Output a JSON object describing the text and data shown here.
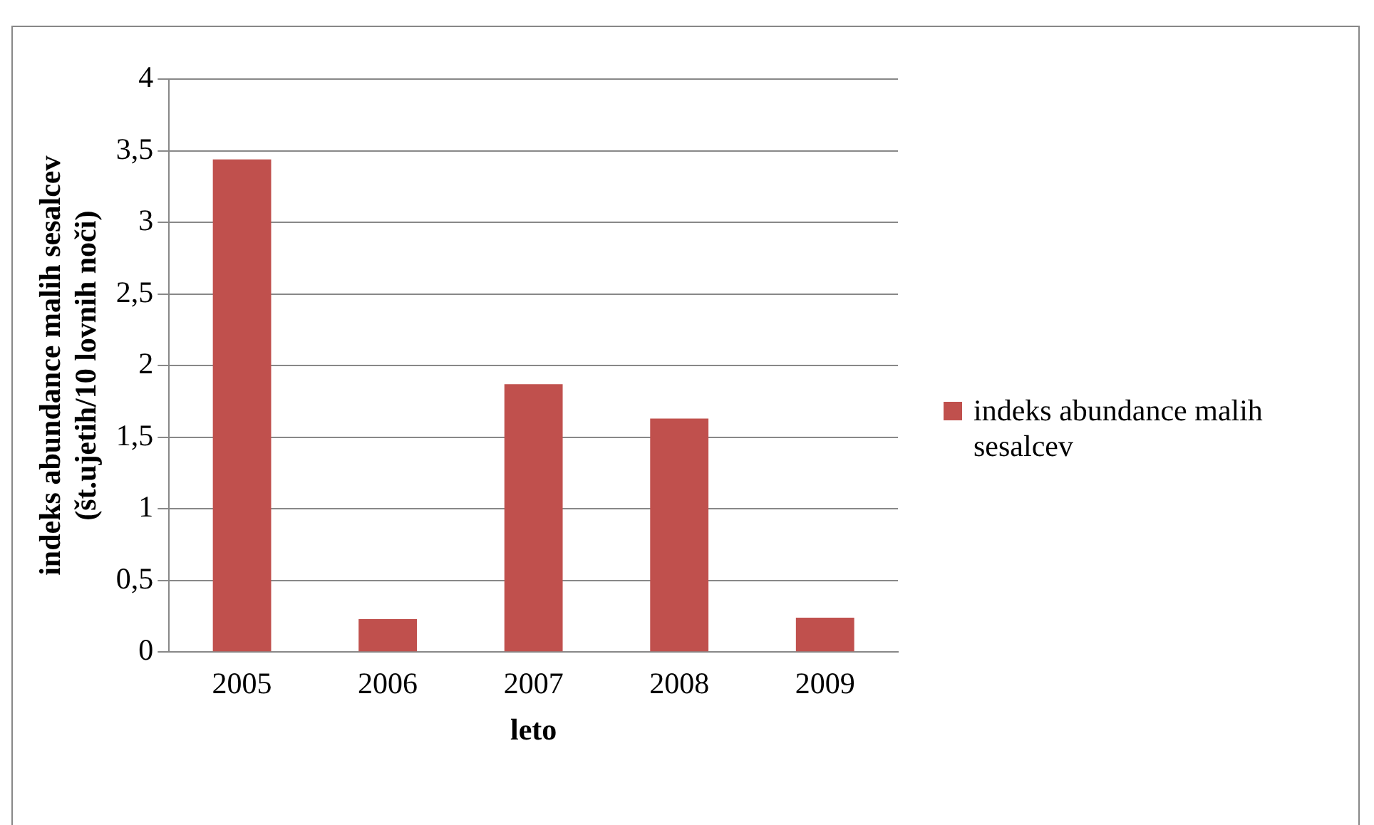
{
  "chart_data": {
    "type": "bar",
    "xlabel": "leto",
    "ylabel": "indeks abundance malih sesalcev (št.ujetih/10 lovnih noči)",
    "categories": [
      "2005",
      "2006",
      "2007",
      "2008",
      "2009"
    ],
    "series": [
      {
        "name": "indeks abundance malih sesalcev",
        "color": "#c0504d",
        "values": [
          3.44,
          0.23,
          1.87,
          1.63,
          0.24
        ]
      }
    ],
    "ylim": [
      0,
      4
    ],
    "yticks": [
      0,
      {
        "value": 0.5,
        "label": "0,5"
      },
      1,
      {
        "value": 1.5,
        "label": "1,5"
      },
      2,
      {
        "value": 2.5,
        "label": "2,5"
      },
      3,
      {
        "value": 3.5,
        "label": "3,5"
      },
      4
    ],
    "grid": "y",
    "legend": "right"
  }
}
